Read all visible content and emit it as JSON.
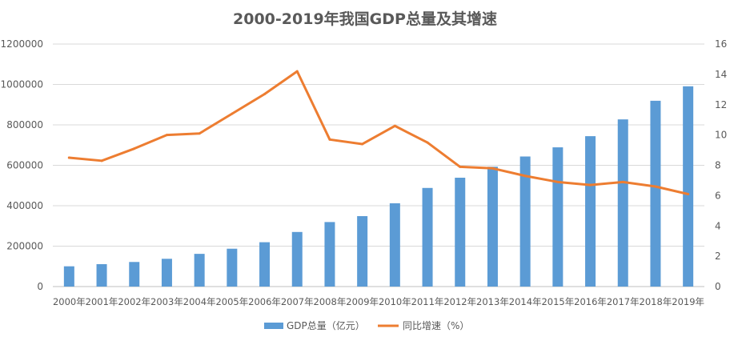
{
  "chart_data": {
    "type": "bar+line",
    "title": "2000-2019年我国GDP总量及其增速",
    "categories": [
      "2000年",
      "2001年",
      "2002年",
      "2003年",
      "2004年",
      "2005年",
      "2006年",
      "2007年",
      "2008年",
      "2009年",
      "2010年",
      "2011年",
      "2012年",
      "2013年",
      "2014年",
      "2015年",
      "2016年",
      "2017年",
      "2018年",
      "2019年"
    ],
    "series": [
      {
        "name": "GDP总量（亿元）",
        "type": "bar",
        "axis": "left",
        "color": "#5B9BD5",
        "values": [
          100280,
          110863,
          121717,
          137422,
          161840,
          187319,
          219439,
          270092,
          319245,
          348518,
          412119,
          487940,
          538580,
          592963,
          643563,
          688858,
          744127,
          827122,
          919281,
          990865
        ]
      },
      {
        "name": "同比增速（%）",
        "type": "line",
        "axis": "right",
        "color": "#ED7D31",
        "values": [
          8.5,
          8.3,
          9.1,
          10.0,
          10.1,
          11.4,
          12.7,
          14.2,
          9.7,
          9.4,
          10.6,
          9.5,
          7.9,
          7.8,
          7.3,
          6.9,
          6.7,
          6.9,
          6.6,
          6.1
        ]
      }
    ],
    "left_axis": {
      "range": [
        0,
        1200000
      ],
      "ticks": [
        "0",
        "200000",
        "400000",
        "600000",
        "800000",
        "1000000",
        "1200000"
      ]
    },
    "right_axis": {
      "range": [
        0,
        16
      ],
      "ticks": [
        "0",
        "2",
        "4",
        "6",
        "8",
        "10",
        "12",
        "14",
        "16"
      ]
    },
    "grid": true,
    "legend": "bottom"
  }
}
